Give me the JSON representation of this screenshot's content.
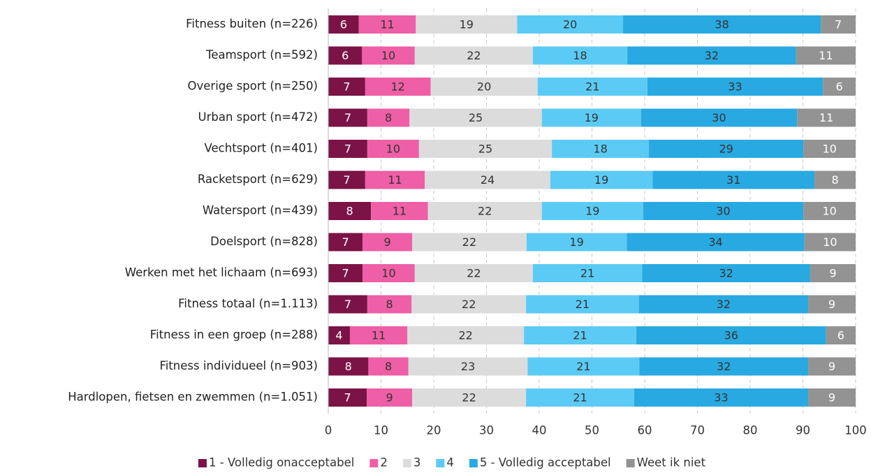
{
  "chart_data": {
    "type": "stacked-barh",
    "categories": [
      "Fitness buiten (n=226)",
      "Teamsport (n=592)",
      "Overige sport (n=250)",
      "Urban sport (n=472)",
      "Vechtsport (n=401)",
      "Racketsport (n=629)",
      "Watersport (n=439)",
      "Doelsport (n=828)",
      "Werken met het lichaam (n=693)",
      "Fitness totaal (n=1.113)",
      "Fitness in een groep (n=288)",
      "Fitness individueel (n=903)",
      "Hardlopen, fietsen en zwemmen (n=1.051)"
    ],
    "series": [
      {
        "name": "1 - Volledig onacceptabel",
        "color": "#7b1346",
        "label_color": "#ffffff",
        "values": [
          5.8,
          6.4,
          7.0,
          7.4,
          7.4,
          7.0,
          8.1,
          6.5,
          6.5,
          7.4,
          4.1,
          7.6,
          7.3
        ],
        "value_labels": [
          "6",
          "6",
          "7",
          "7",
          "7",
          "7",
          "8",
          "7",
          "7",
          "7",
          "4",
          "8",
          "7"
        ]
      },
      {
        "name": "2",
        "color": "#ee5fa7",
        "label_color": "#333333",
        "values": [
          10.8,
          10.0,
          12.4,
          8.0,
          9.8,
          11.3,
          10.8,
          9.4,
          9.9,
          8.4,
          10.9,
          7.6,
          8.6
        ],
        "value_labels": [
          "11",
          "10",
          "12",
          "8",
          "10",
          "11",
          "11",
          "9",
          "10",
          "8",
          "11",
          "8",
          "9"
        ]
      },
      {
        "name": "3",
        "color": "#dcdcdc",
        "label_color": "#333333",
        "values": [
          19.2,
          22.4,
          20.3,
          25.1,
          25.2,
          23.8,
          21.6,
          21.7,
          22.4,
          21.7,
          22.1,
          22.6,
          21.6
        ],
        "value_labels": [
          "19",
          "22",
          "20",
          "25",
          "25",
          "24",
          "22",
          "22",
          "22",
          "22",
          "22",
          "23",
          "22"
        ]
      },
      {
        "name": "4",
        "color": "#5bcbf5",
        "label_color": "#333333",
        "values": [
          20.1,
          17.9,
          20.8,
          18.8,
          18.4,
          19.4,
          19.2,
          19.0,
          20.7,
          21.4,
          21.3,
          21.2,
          20.5
        ],
        "value_labels": [
          "20",
          "18",
          "21",
          "19",
          "18",
          "19",
          "19",
          "19",
          "21",
          "21",
          "21",
          "21",
          "21"
        ]
      },
      {
        "name": "5 - Volledig acceptabel",
        "color": "#29a9e1",
        "label_color": "#333333",
        "values": [
          37.5,
          32.0,
          33.3,
          29.6,
          29.3,
          30.7,
          30.4,
          33.7,
          31.9,
          32.1,
          36.0,
          32.0,
          33.0
        ],
        "value_labels": [
          "38",
          "32",
          "33",
          "30",
          "29",
          "31",
          "30",
          "34",
          "32",
          "32",
          "36",
          "32",
          "33"
        ]
      },
      {
        "name": "Weet ik niet",
        "color": "#939393",
        "label_color": "#ffffff",
        "values": [
          6.6,
          11.3,
          6.2,
          11.1,
          9.9,
          7.8,
          9.9,
          9.7,
          8.6,
          9.0,
          5.6,
          9.0,
          9.0
        ],
        "value_labels": [
          "7",
          "11",
          "6",
          "11",
          "10",
          "8",
          "10",
          "10",
          "9",
          "9",
          "6",
          "9",
          "9"
        ]
      }
    ],
    "xlim": [
      0,
      100
    ],
    "xticks": [
      0,
      10,
      20,
      30,
      40,
      50,
      60,
      70,
      80,
      90,
      100
    ],
    "grid": true,
    "legend": "bottom"
  }
}
